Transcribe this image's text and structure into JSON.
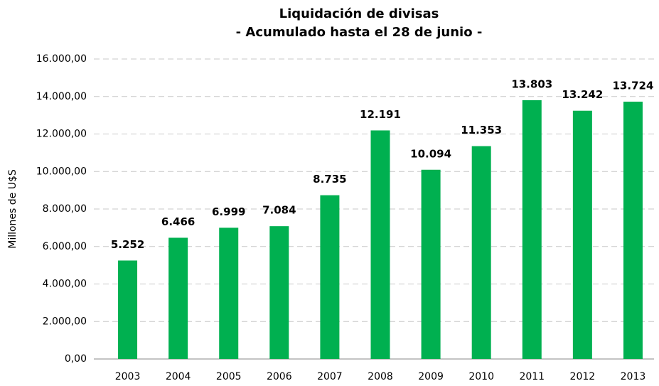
{
  "chart_data": {
    "type": "bar",
    "title": "Liquidación de divisas",
    "subtitle": "- Acumulado hasta el 28 de junio -",
    "y_label": "Millones de U$S",
    "categories": [
      "2003",
      "2004",
      "2005",
      "2006",
      "2007",
      "2008",
      "2009",
      "2010",
      "2011",
      "2012",
      "2013"
    ],
    "values": [
      5252,
      6466,
      6999,
      7084,
      8735,
      12191,
      10094,
      11353,
      13803,
      13242,
      13724
    ],
    "value_labels": [
      "5.252",
      "6.466",
      "6.999",
      "7.084",
      "8.735",
      "12.191",
      "10.094",
      "11.353",
      "13.803",
      "13.242",
      "13.724"
    ],
    "color": "#00b050",
    "ylim": [
      0,
      16000
    ],
    "yticks": [
      {
        "value": 0,
        "label": "0,00"
      },
      {
        "value": 2000,
        "label": "2.000,00"
      },
      {
        "value": 4000,
        "label": "4.000,00"
      },
      {
        "value": 6000,
        "label": "6.000,00"
      },
      {
        "value": 8000,
        "label": "8.000,00"
      },
      {
        "value": 10000,
        "label": "10.000,00"
      },
      {
        "value": 12000,
        "label": "12.000,00"
      },
      {
        "value": 14000,
        "label": "14.000,00"
      },
      {
        "value": 16000,
        "label": "16.000,00"
      }
    ],
    "grid": true
  }
}
